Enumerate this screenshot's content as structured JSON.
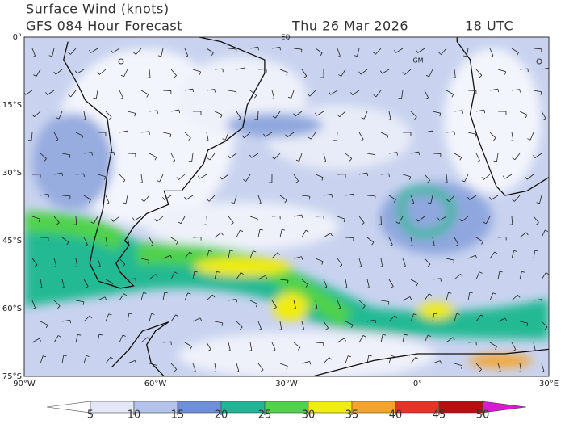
{
  "header": {
    "title": "Surface Wind (knots)",
    "subtitle": "GFS 084 Hour Forecast",
    "date": "Thu 26 Mar 2026",
    "time": "18 UTC"
  },
  "map": {
    "lat_labels": [
      "0°",
      "15°S",
      "30°S",
      "45°S",
      "60°S",
      "75°S"
    ],
    "lon_labels": [
      "90°W",
      "60°W",
      "30°W",
      "0°",
      "30°E"
    ],
    "markers": [
      "EQ",
      "GM"
    ]
  },
  "colorbar": {
    "ticks": [
      5,
      10,
      15,
      20,
      25,
      30,
      35,
      40,
      45,
      50
    ],
    "colors": [
      "#ffffff",
      "#e4e8f6",
      "#b3c3ea",
      "#6d90d8",
      "#1fb697",
      "#4fd24c",
      "#f0ec10",
      "#f5a32b",
      "#e4342a",
      "#b60f12",
      "#d61ad6"
    ]
  }
}
